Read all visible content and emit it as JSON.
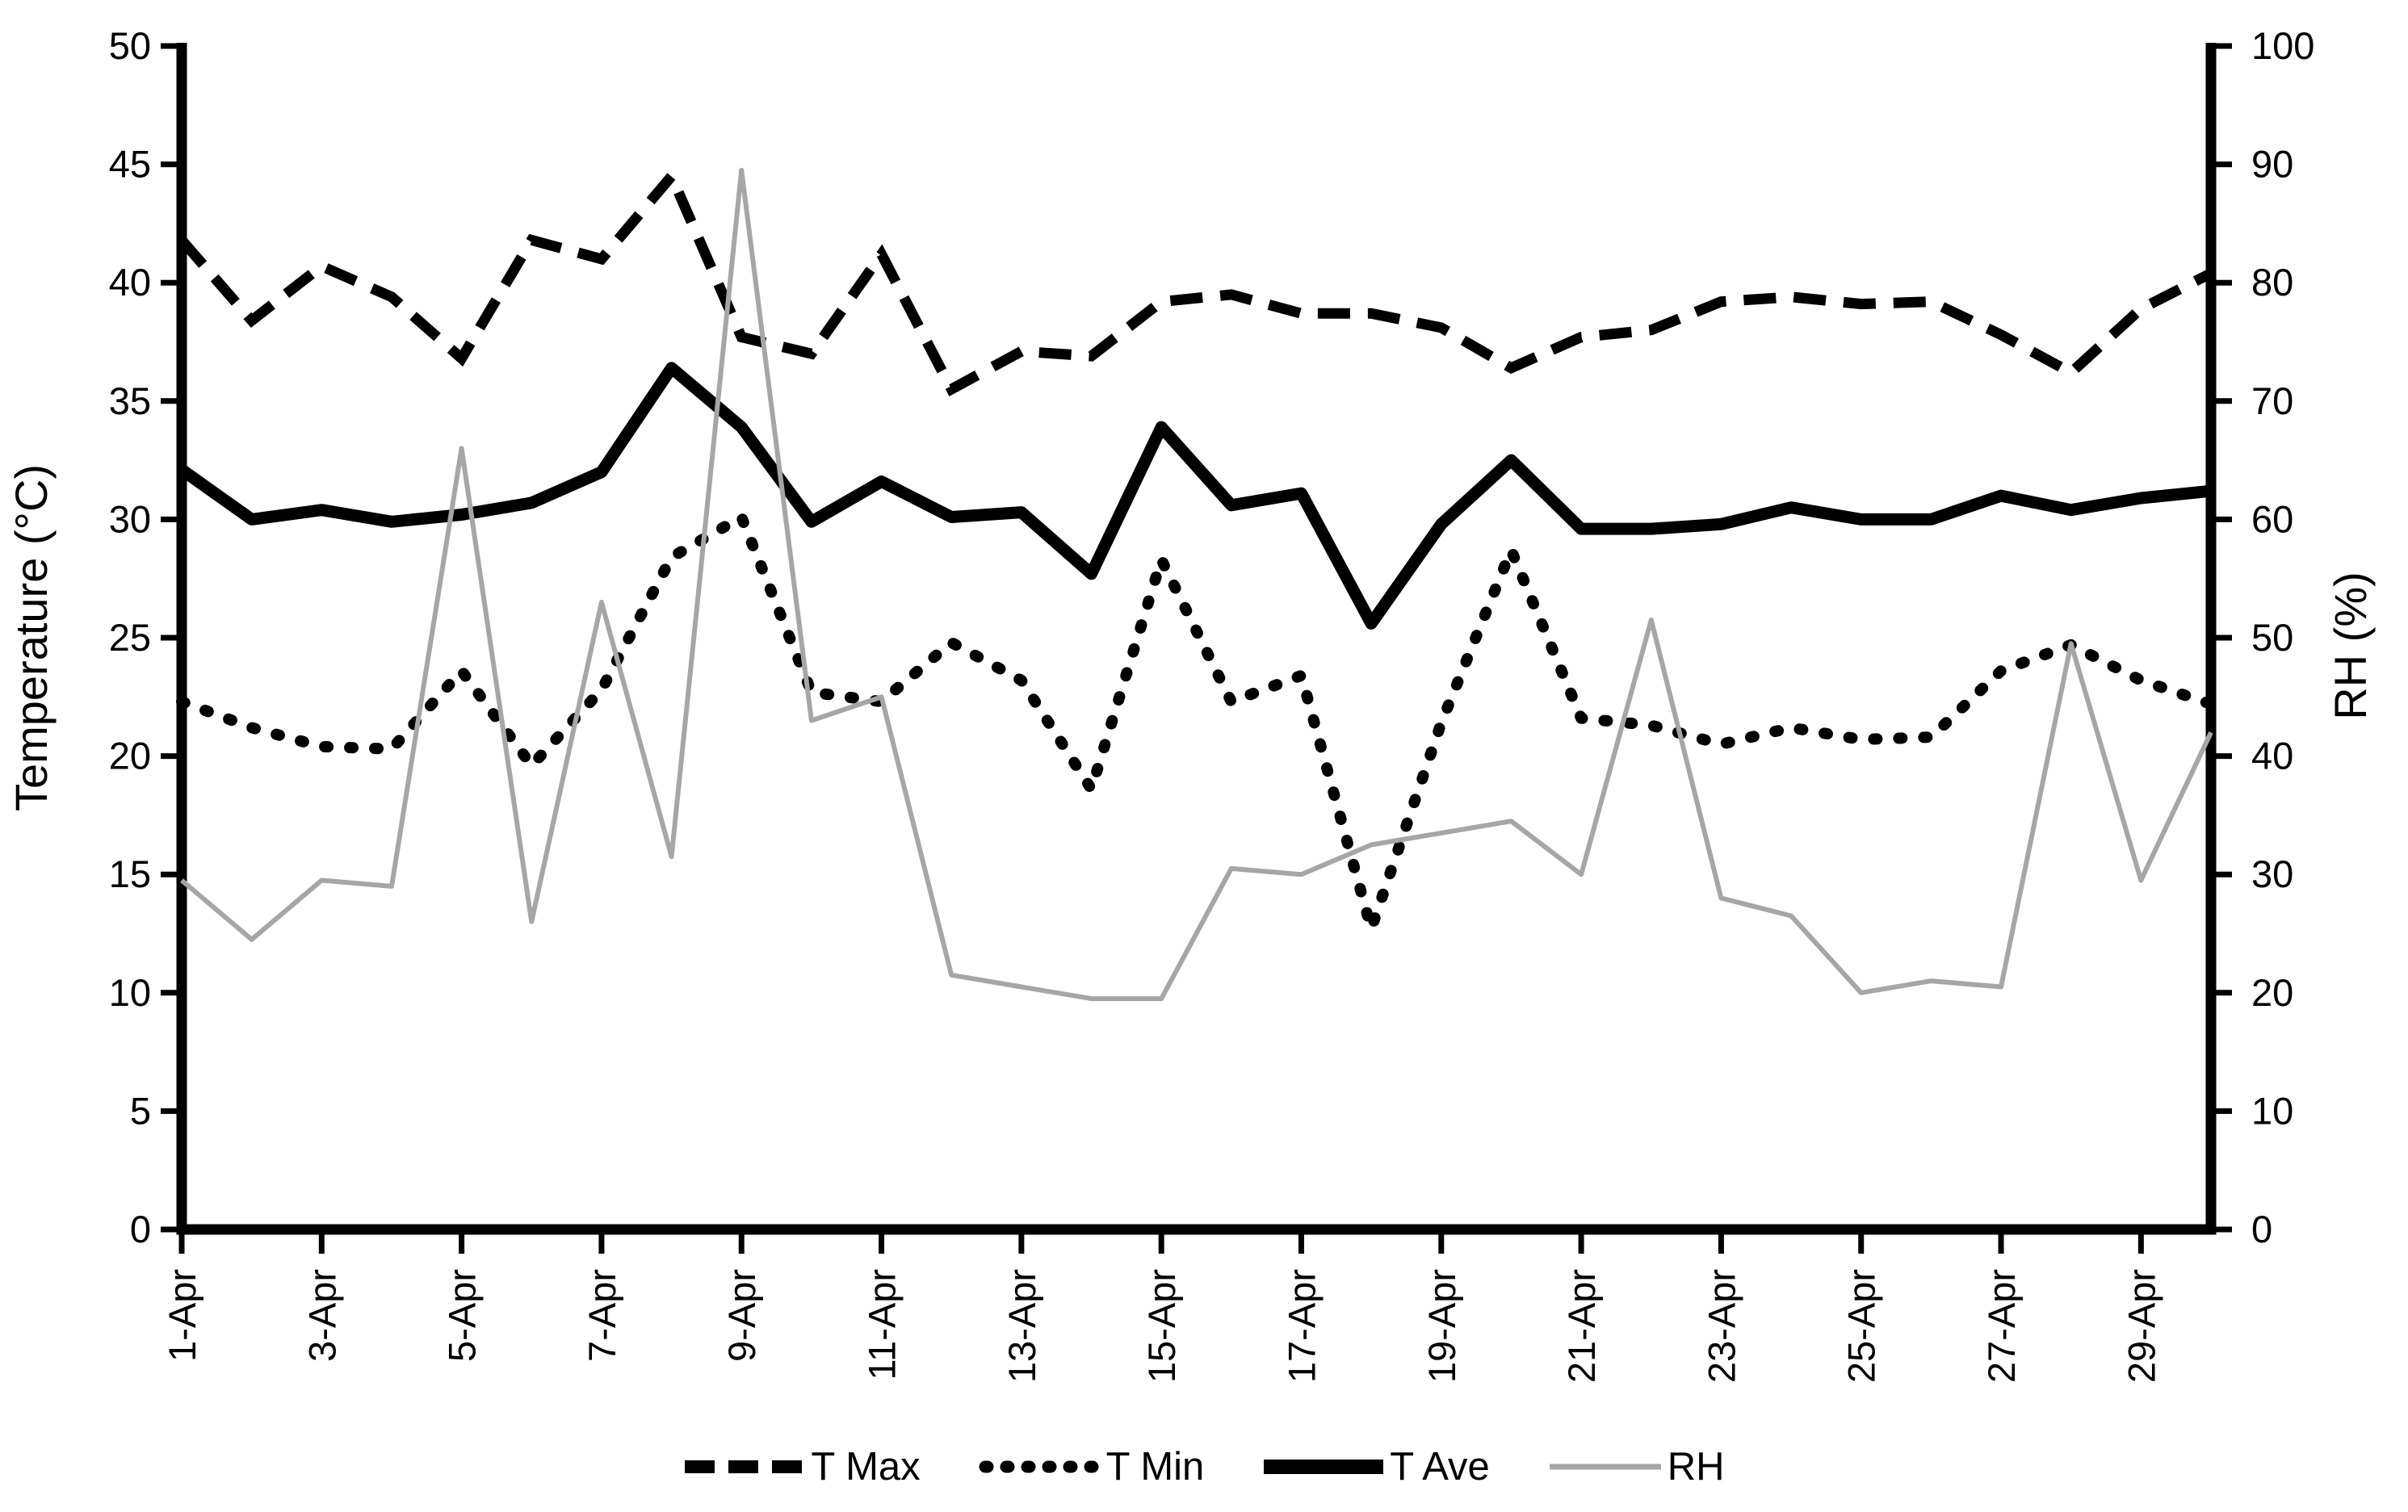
{
  "chart_data": {
    "type": "line",
    "title": "",
    "x_categories": [
      "1-Apr",
      "2-Apr",
      "3-Apr",
      "4-Apr",
      "5-Apr",
      "6-Apr",
      "7-Apr",
      "8-Apr",
      "9-Apr",
      "10-Apr",
      "11-Apr",
      "12-Apr",
      "13-Apr",
      "14-Apr",
      "15-Apr",
      "16-Apr",
      "17-Apr",
      "18-Apr",
      "19-Apr",
      "20-Apr",
      "21-Apr",
      "22-Apr",
      "23-Apr",
      "24-Apr",
      "25-Apr",
      "26-Apr",
      "27-Apr",
      "28-Apr",
      "29-Apr",
      "30-Apr"
    ],
    "x_tick_labels_shown": [
      "1-Apr",
      "3-Apr",
      "5-Apr",
      "7-Apr",
      "9-Apr",
      "11-Apr",
      "13-Apr",
      "15-Apr",
      "17-Apr",
      "19-Apr",
      "21-Apr",
      "23-Apr",
      "25-Apr",
      "27-Apr",
      "29-Apr"
    ],
    "left_axis": {
      "label": "Temperature (°C)",
      "min": 0,
      "max": 50,
      "tick_step": 5,
      "ticks": [
        0,
        5,
        10,
        15,
        20,
        25,
        30,
        35,
        40,
        45,
        50
      ]
    },
    "right_axis": {
      "label": "RH (%)",
      "min": 0,
      "max": 100,
      "tick_step": 10,
      "ticks": [
        0,
        10,
        20,
        30,
        40,
        50,
        60,
        70,
        80,
        90,
        100
      ]
    },
    "grid": false,
    "legend_position": "bottom",
    "series": [
      {
        "name": "T Max",
        "axis": "left",
        "style": "dashed",
        "color": "#000000",
        "values": [
          41.8,
          38.4,
          40.7,
          39.4,
          36.8,
          41.8,
          41.0,
          44.5,
          37.7,
          37.0,
          41.2,
          35.5,
          37.1,
          36.9,
          39.2,
          39.5,
          38.7,
          38.7,
          38.1,
          36.4,
          37.7,
          38.0,
          39.2,
          39.4,
          39.1,
          39.2,
          37.8,
          36.2,
          38.9,
          40.4
        ]
      },
      {
        "name": "T Min",
        "axis": "left",
        "style": "dotted",
        "color": "#000000",
        "values": [
          22.3,
          21.2,
          20.4,
          20.3,
          23.6,
          19.6,
          22.8,
          28.4,
          30.1,
          22.7,
          22.3,
          24.8,
          23.2,
          18.6,
          28.3,
          22.3,
          23.4,
          12.7,
          21.4,
          28.7,
          21.6,
          21.3,
          20.5,
          21.2,
          20.7,
          20.8,
          23.6,
          24.7,
          23.2,
          22.2
        ]
      },
      {
        "name": "T Ave",
        "axis": "left",
        "style": "solid-thick",
        "color": "#000000",
        "values": [
          32.1,
          30.0,
          30.4,
          29.9,
          30.2,
          30.7,
          32.0,
          36.4,
          33.9,
          29.9,
          31.6,
          30.1,
          30.3,
          27.7,
          33.9,
          30.6,
          31.1,
          25.6,
          29.8,
          32.5,
          29.6,
          29.6,
          29.8,
          30.5,
          30.0,
          30.0,
          31.0,
          30.4,
          30.9,
          31.2
        ]
      },
      {
        "name": "RH",
        "axis": "right",
        "style": "solid-thin",
        "color": "#a6a6a6",
        "values": [
          29.5,
          24.5,
          29.5,
          29,
          66,
          26,
          53,
          31.5,
          89.5,
          43,
          45,
          21.5,
          20.5,
          19.5,
          19.5,
          30.5,
          30,
          32.5,
          33.5,
          34.5,
          30,
          51.5,
          28,
          26.5,
          20,
          21,
          20.5,
          49.5,
          29.5,
          42
        ]
      }
    ]
  }
}
